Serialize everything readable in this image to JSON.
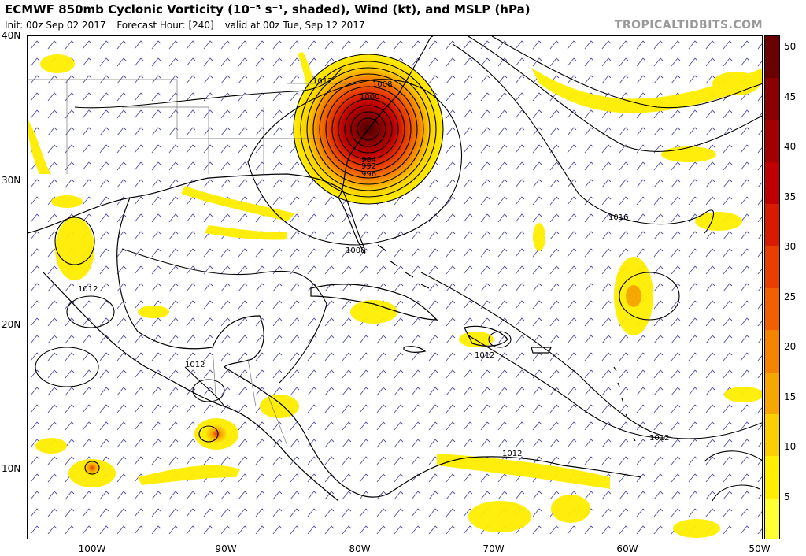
{
  "header": {
    "title": "ECMWF 850mb Cyclonic Vorticity (10⁻⁵ s⁻¹, shaded), Wind (kt), and MSLP (hPa)",
    "init": "Init: 00z Sep 02 2017",
    "forecast_hour": "Forecast Hour: [240]",
    "valid": "valid at 00z Tue, Sep 12 2017",
    "brand": "TROPICALTIDBITS.COM"
  },
  "axes": {
    "latitude_labels": [
      "40N",
      "30N",
      "20N",
      "10N"
    ],
    "longitude_labels": [
      "100W",
      "90W",
      "80W",
      "70W",
      "60W",
      "50W"
    ]
  },
  "isobar_labels": {
    "l1012_nw": "1012",
    "l1008_n": "1008",
    "l1000": "1000",
    "l984": "984",
    "l992": "992",
    "l996": "996",
    "l1008_s": "1008",
    "l1016": "1016",
    "l1012_w": "1012",
    "l1012_ca": "1012",
    "l1012_hisp": "1012",
    "l1012_sa": "1012",
    "l1012_e": "1012"
  },
  "colorbar": {
    "labels": [
      "50",
      "45",
      "40",
      "35",
      "30",
      "25",
      "20",
      "15",
      "10",
      "5"
    ],
    "colors": [
      "#6b0000",
      "#8b0000",
      "#a30000",
      "#c00000",
      "#d81b00",
      "#e83e00",
      "#f06000",
      "#f48400",
      "#f7a800",
      "#fbd000",
      "#ffee00",
      "#ffff33"
    ]
  },
  "colors": {
    "vorticity_light": "#ffee00",
    "vorticity_mid": "#f7a800",
    "vorticity_high": "#d81b00",
    "vorticity_core": "#6b0000",
    "coastline": "#000000",
    "borders": "#888888",
    "wind_barbs": "#3a3a8a"
  }
}
